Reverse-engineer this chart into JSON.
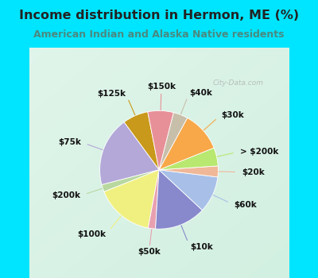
{
  "title": "Income distribution in Hermon, ME (%)",
  "subtitle": "American Indian and Alaska Native residents",
  "watermark": "City-Data.com",
  "slices": [
    {
      "label": "$125k",
      "value": 7,
      "color": "#c8991a"
    },
    {
      "label": "$75k",
      "value": 19,
      "color": "#b3a8d8"
    },
    {
      "label": "$200k",
      "value": 2,
      "color": "#b8d8a0"
    },
    {
      "label": "$100k",
      "value": 16,
      "color": "#f0f080"
    },
    {
      "label": "$50k",
      "value": 2,
      "color": "#e8a0b0"
    },
    {
      "label": "$10k",
      "value": 14,
      "color": "#8888cc"
    },
    {
      "label": "$60k",
      "value": 10,
      "color": "#a8c0e8"
    },
    {
      "label": "$20k",
      "value": 3,
      "color": "#f0b898"
    },
    {
      "label": "> $200k",
      "value": 5,
      "color": "#b8e870"
    },
    {
      "label": "$30k",
      "value": 11,
      "color": "#f8a848"
    },
    {
      "label": "$40k",
      "value": 4,
      "color": "#c8bfaa"
    },
    {
      "label": "$150k",
      "value": 7,
      "color": "#e89098"
    }
  ],
  "background_top": "#00e5ff",
  "background_chart_tl": [
    0.88,
    0.96,
    0.92
  ],
  "background_chart_br": [
    0.82,
    0.94,
    0.88
  ],
  "title_color": "#222222",
  "subtitle_color": "#4a8a80",
  "title_fontsize": 11.5,
  "subtitle_fontsize": 9,
  "label_fontsize": 7.5,
  "startangle": 101
}
